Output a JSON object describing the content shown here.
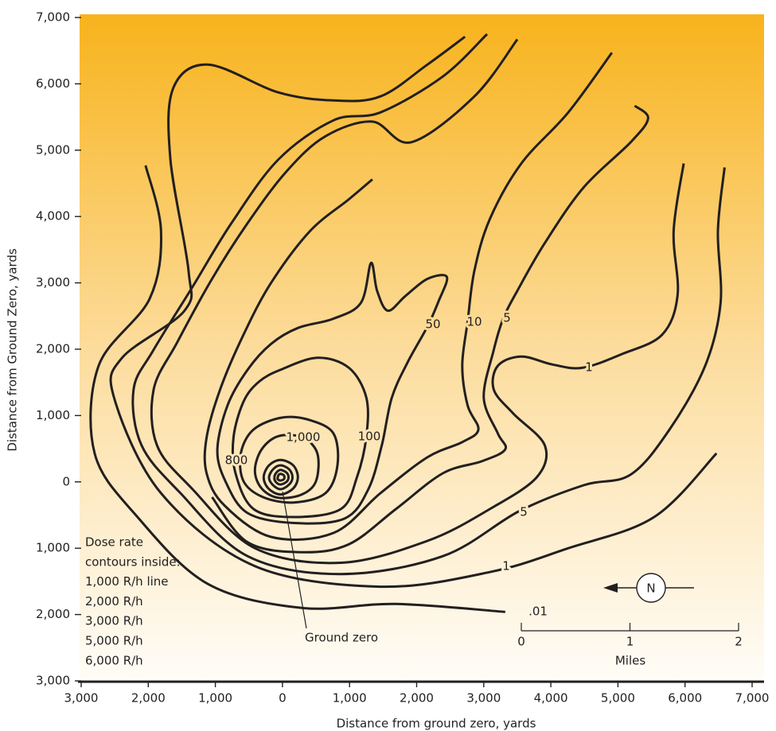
{
  "chart_data": {
    "type": "contour",
    "xlabel": "Distance from ground zero, yards",
    "ylabel": "Distance from Ground Zero, yards",
    "xlim": [
      -3000,
      7000
    ],
    "ylim": [
      -3000,
      7000
    ],
    "xticks": [
      {
        "value": -3000,
        "label": "3,000"
      },
      {
        "value": -2000,
        "label": "2,000"
      },
      {
        "value": -1000,
        "label": "1,000"
      },
      0,
      {
        "value": 1000,
        "label": "1,000"
      },
      {
        "value": 2000,
        "label": "2,000"
      },
      {
        "value": 3000,
        "label": "3,000"
      },
      {
        "value": 4000,
        "label": "4,000"
      },
      {
        "value": 5000,
        "label": "5,000"
      },
      {
        "value": 6000,
        "label": "6,000"
      },
      {
        "value": 7000,
        "label": "7,000"
      }
    ],
    "yticks": [
      {
        "value": -3000,
        "label": "3,000"
      },
      {
        "value": -2000,
        "label": "2,000"
      },
      {
        "value": -1000,
        "label": "1,000"
      },
      0,
      {
        "value": 1000,
        "label": "1,000"
      },
      {
        "value": 2000,
        "label": "2,000"
      },
      {
        "value": 3000,
        "label": "3,000"
      },
      {
        "value": 4000,
        "label": "4,000"
      },
      {
        "value": 5000,
        "label": "5,000"
      },
      {
        "value": 6000,
        "label": "6,000"
      },
      {
        "value": 7000,
        "label": "7,000"
      }
    ],
    "color": "#231f20",
    "background": [
      "#f8b31c",
      "#fcdc9c",
      "#fffdf8"
    ],
    "contours": [
      {
        "label": ".01",
        "x": [
          -2040,
          -1810,
          -1980,
          -2740,
          -2800,
          -2160,
          -1110,
          290,
          1690,
          3320
        ],
        "y": [
          4770,
          3780,
          2760,
          1750,
          430,
          -530,
          -1540,
          -1900,
          -1840,
          -1960
        ]
      },
      {
        "label": "1",
        "x": [
          2720,
          2160,
          1460,
          760,
          -60,
          -1110,
          -1630,
          -1670,
          -1400,
          -1460,
          -2390,
          -2510,
          -1810,
          -410,
          1460,
          3090,
          4260,
          5540,
          6470
        ],
        "y": [
          6710,
          6290,
          5810,
          5750,
          5870,
          6290,
          5930,
          4860,
          3180,
          2580,
          1870,
          1270,
          -170,
          -1270,
          -1580,
          -1360,
          -1000,
          -530,
          430
        ]
      },
      {
        "label": "5",
        "x": [
          3050,
          2390,
          1460,
          760,
          -60,
          -760,
          -1340,
          -1920,
          -2220,
          -2100,
          -1520,
          -520,
          870,
          2390,
          3530,
          4490,
          5190,
          5770,
          6300,
          6530,
          6490,
          6590
        ],
        "y": [
          6750,
          6110,
          5570,
          5450,
          4860,
          3900,
          2940,
          1990,
          1390,
          550,
          -170,
          -1120,
          -1390,
          -1120,
          -440,
          -50,
          110,
          790,
          1750,
          2700,
          3780,
          4740
        ]
      },
      {
        "label": "1",
        "x": [
          3500,
          2860,
          1920,
          1340,
          640,
          60,
          -520,
          -1050,
          -1570,
          -1920,
          -1870,
          -1340,
          -410,
          870,
          2160,
          3090,
          3790,
          3910,
          3440,
          3150,
          3210,
          3560,
          4020,
          4470,
          5070,
          5660,
          5890,
          5830,
          5980
        ],
        "y": [
          6670,
          5810,
          5120,
          5430,
          5210,
          4680,
          3900,
          3060,
          2100,
          1390,
          550,
          -110,
          -1000,
          -1220,
          -890,
          -410,
          70,
          550,
          1030,
          1390,
          1750,
          1890,
          1770,
          1720,
          1930,
          2220,
          2820,
          3780,
          4800
        ]
      },
      {
        "label": "5",
        "x": [
          5250,
          5450,
          5190,
          4490,
          3910,
          3500,
          3290,
          3150,
          3000,
          3210,
          3320,
          2970,
          2390,
          1690,
          990,
          290,
          -520,
          -1050
        ],
        "y": [
          5670,
          5480,
          5120,
          4440,
          3600,
          2880,
          2460,
          1990,
          1270,
          730,
          490,
          310,
          130,
          -410,
          -940,
          -1060,
          -910,
          -230
        ]
      },
      {
        "label": "10",
        "x": [
          4910,
          4260,
          3560,
          3090,
          2860,
          2760,
          2680,
          2760,
          2920,
          2680,
          2160,
          1460,
          760,
          -170,
          -870,
          -1130,
          -1130,
          -930,
          -580,
          -170,
          410,
          990,
          1340
        ],
        "y": [
          6470,
          5570,
          4800,
          3960,
          3180,
          2420,
          1750,
          1150,
          790,
          600,
          370,
          -170,
          -770,
          -830,
          -350,
          130,
          670,
          1390,
          2220,
          3000,
          3780,
          4260,
          4560
        ]
      },
      {
        "label": "50",
        "closed": true,
        "x": [
          2450,
          2160,
          1830,
          1570,
          1410,
          1320,
          1170,
          760,
          230,
          -170,
          -520,
          -820,
          -970,
          -850,
          -520,
          170,
          930,
          1280,
          1480,
          1630,
          1870,
          2160,
          2330
        ],
        "y": [
          3090,
          3060,
          2800,
          2580,
          2880,
          3300,
          2700,
          2460,
          2320,
          2080,
          1690,
          1150,
          490,
          10,
          -470,
          -620,
          -550,
          -110,
          550,
          1270,
          1810,
          2340,
          2730
        ]
      },
      {
        "label": "100",
        "closed": true,
        "x": [
          -30,
          520,
          990,
          1250,
          1250,
          1110,
          870,
          170,
          -430,
          -700,
          -730,
          -580,
          -350
        ],
        "y": [
          1690,
          1870,
          1720,
          1270,
          680,
          70,
          -410,
          -530,
          -410,
          130,
          670,
          1210,
          1510
        ]
      },
      {
        "label": "800",
        "closed": true,
        "x": [
          0,
          410,
          760,
          820,
          640,
          170,
          -290,
          -580,
          -620,
          -430
        ],
        "y": [
          970,
          930,
          730,
          250,
          -170,
          -310,
          -230,
          10,
          430,
          790
        ]
      },
      {
        "label": "1,000",
        "closed": true,
        "x": [
          -60,
          300,
          520,
          500,
          290,
          -60,
          -310,
          -410,
          -310
        ],
        "y": [
          690,
          670,
          430,
          10,
          -190,
          -240,
          -100,
          170,
          490
        ]
      },
      {
        "closed": true,
        "x": [
          -30,
          160,
          230,
          160,
          -30,
          -210,
          -280,
          -200
        ],
        "y": [
          330,
          250,
          70,
          -100,
          -190,
          -100,
          70,
          250
        ]
      },
      {
        "closed": true,
        "x": [
          -30,
          100,
          150,
          100,
          -30,
          -150,
          -200,
          -140
        ],
        "y": [
          250,
          190,
          70,
          -40,
          -110,
          -40,
          70,
          190
        ]
      },
      {
        "closed": true,
        "x": [
          -30,
          60,
          90,
          60,
          -30,
          -100,
          -120,
          -90
        ],
        "y": [
          180,
          140,
          70,
          0,
          -40,
          0,
          70,
          140
        ]
      },
      {
        "closed": true,
        "x": [
          -30,
          20,
          30,
          20,
          -30,
          -70,
          -70,
          -60
        ],
        "y": [
          120,
          100,
          70,
          40,
          20,
          40,
          70,
          100
        ]
      }
    ],
    "note": [
      "Dose rate",
      "contours inside:",
      "1,000 R/h line",
      "2,000 R/h",
      "3,000 R/h",
      "5,000 R/h",
      "6,000 R/h"
    ],
    "ground_zero": "Ground zero",
    "compass": "N",
    "scale_bar": {
      "label": "Miles",
      "ticks": [
        0,
        1,
        2
      ]
    }
  }
}
